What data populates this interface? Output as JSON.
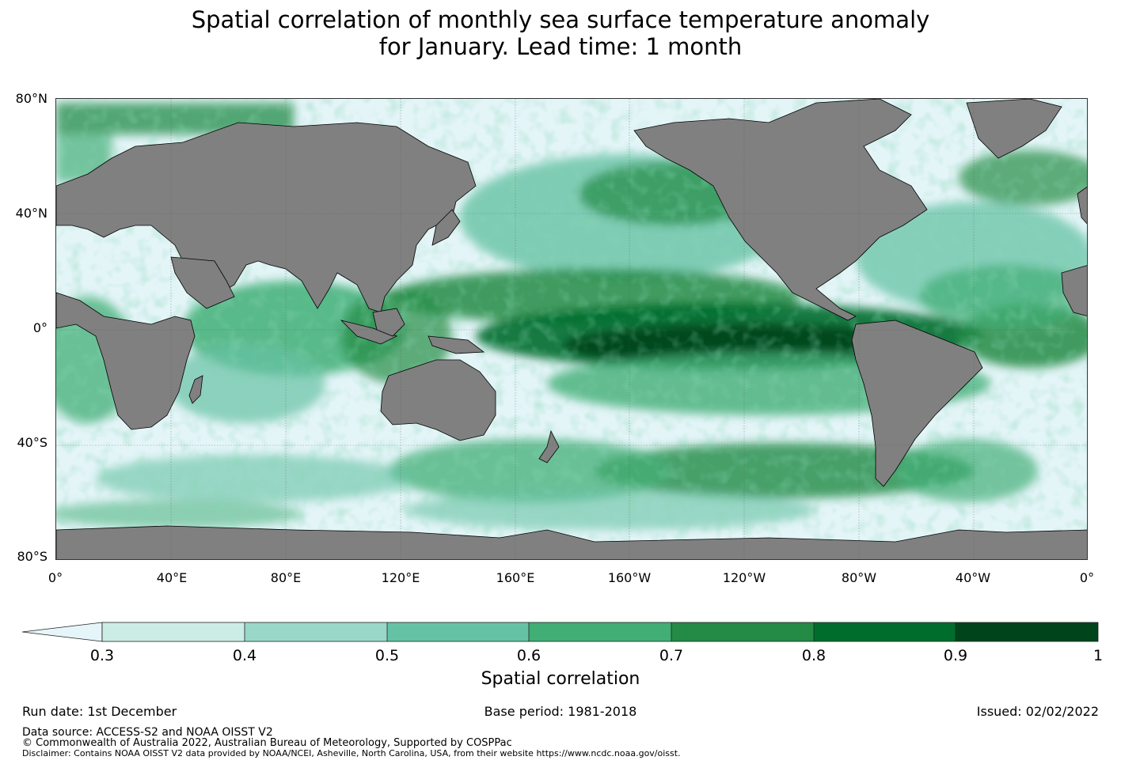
{
  "title_line1": "Spatial correlation of monthly sea surface temperature anomaly",
  "title_line2": "for January. Lead time: 1 month",
  "map": {
    "lat_labels": [
      "80°N",
      "40°N",
      "0°",
      "40°S",
      "80°S"
    ],
    "lon_labels": [
      "0°",
      "40°E",
      "80°E",
      "120°E",
      "160°E",
      "160°W",
      "120°W",
      "80°W",
      "40°W",
      "0°"
    ],
    "colors": {
      "land": "#808080",
      "ocean_low": "#e5f5f9",
      "high_correlation": "#00441b"
    }
  },
  "colorbar": {
    "title": "Spatial correlation",
    "ticks": [
      "0.3",
      "0.4",
      "0.5",
      "0.6",
      "0.7",
      "0.8",
      "0.9",
      "1"
    ],
    "colors": [
      "#e5f5f9",
      "#ccece6",
      "#99d8c9",
      "#66c2a4",
      "#41ae76",
      "#238b45",
      "#006d2c",
      "#00441b"
    ]
  },
  "footer": {
    "run_date": "Run date: 1st December",
    "base_period": "Base period: 1981-2018",
    "issued": "Issued: 02/02/2022",
    "data_source": "Data source: ACCESS-S2 and NOAA OISST V2",
    "copyright": "© Commonwealth of Australia 2022, Australian Bureau of Meteorology, Supported by COSPPac",
    "disclaimer": "Disclaimer: Contains NOAA OISST V2 data provided by NOAA/NCEI, Asheville, North Carolina, USA, from their website https://www.ncdc.noaa.gov/oisst."
  }
}
